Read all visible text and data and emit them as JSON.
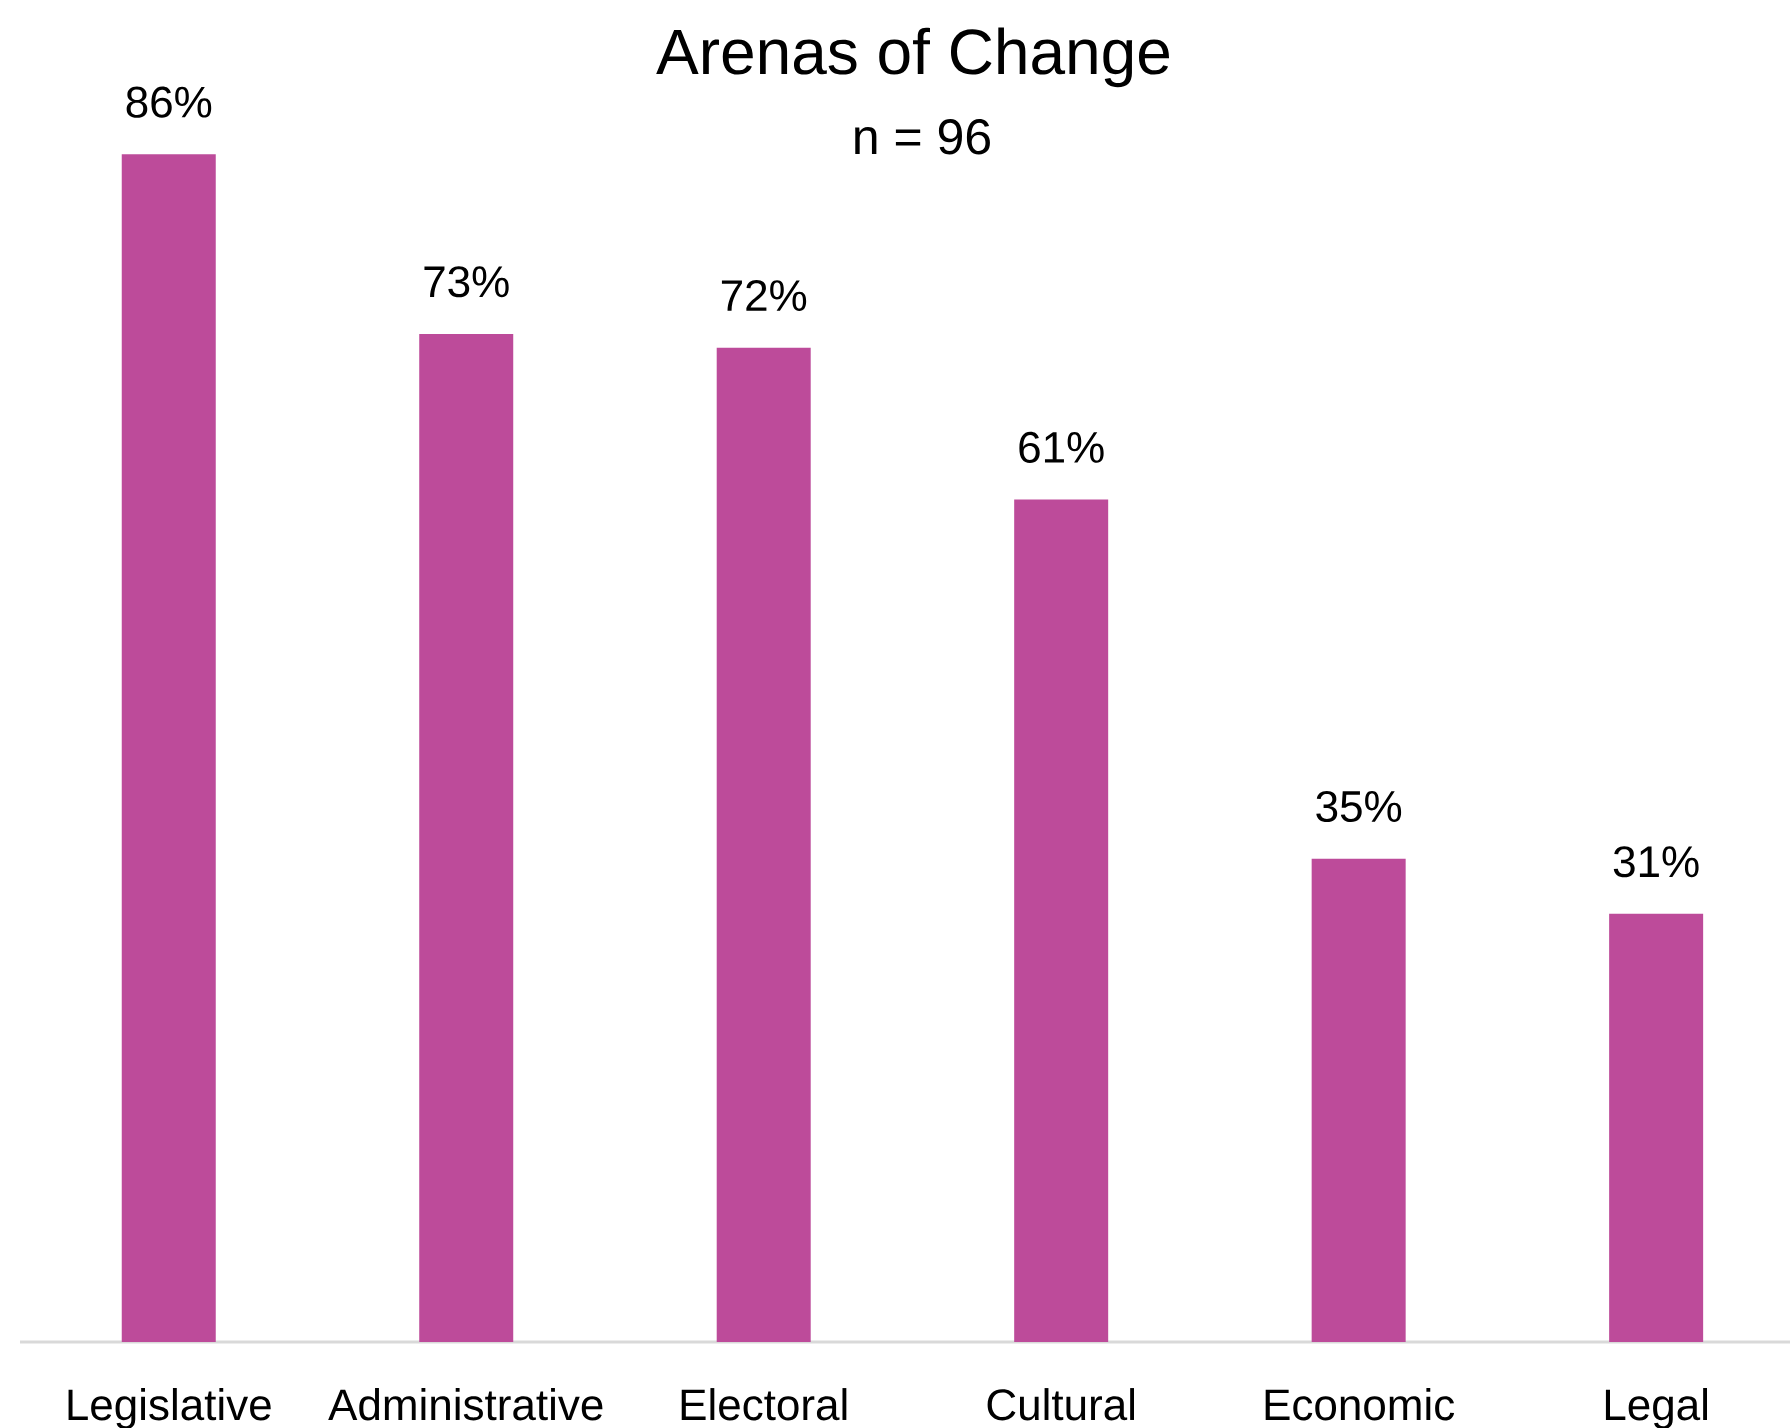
{
  "chart_data": {
    "type": "bar",
    "title": "Arenas of Change",
    "subtitle": "n = 96",
    "categories": [
      "Legislative",
      "Administrative",
      "Electoral",
      "Cultural",
      "Economic",
      "Legal"
    ],
    "values": [
      86,
      73,
      72,
      61,
      35,
      31
    ],
    "value_labels": [
      "86%",
      "73%",
      "72%",
      "61%",
      "35%",
      "31%"
    ],
    "color": "#bd4b9a",
    "grid": false,
    "tick_labels": "x"
  }
}
